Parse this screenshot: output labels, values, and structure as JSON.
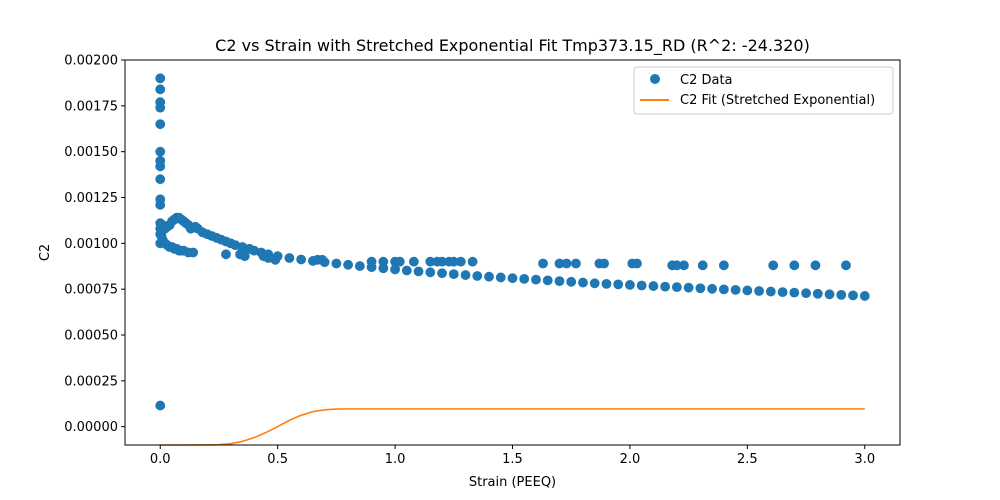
{
  "chart_data": {
    "type": "scatter",
    "title": "C2 vs Strain with Stretched Exponential Fit Tmp373.15_RD (R^2: -24.320)",
    "xlabel": "Strain (PEEQ)",
    "ylabel": "C2",
    "xlim": [
      -0.15,
      3.15
    ],
    "ylim": [
      -0.0001,
      0.002
    ],
    "xticks": [
      0.0,
      0.5,
      1.0,
      1.5,
      2.0,
      2.5,
      3.0
    ],
    "xtick_labels": [
      "0.0",
      "0.5",
      "1.0",
      "1.5",
      "2.0",
      "2.5",
      "3.0"
    ],
    "yticks": [
      0.0,
      0.00025,
      0.0005,
      0.00075,
      0.001,
      0.00125,
      0.0015,
      0.00175,
      0.002
    ],
    "ytick_labels": [
      "0.00000",
      "0.00025",
      "0.00050",
      "0.00075",
      "0.00100",
      "0.00125",
      "0.00150",
      "0.00175",
      "0.00200"
    ],
    "legend_position": "top-right",
    "grid": false,
    "series": [
      {
        "name": "C2 Data",
        "kind": "scatter",
        "color": "#1f77b4",
        "x": [
          0.0,
          0.0,
          0.0,
          0.0,
          0.0,
          0.0,
          0.0,
          0.0,
          0.0,
          0.0,
          0.0,
          0.0,
          0.0,
          0.0,
          0.0,
          0.0,
          0.005,
          0.01,
          0.01,
          0.01,
          0.02,
          0.02,
          0.03,
          0.03,
          0.04,
          0.04,
          0.05,
          0.06,
          0.07,
          0.08,
          0.09,
          0.1,
          0.11,
          0.12,
          0.13,
          0.05,
          0.06,
          0.07,
          0.08,
          0.09,
          0.1,
          0.12,
          0.14,
          0.15,
          0.16,
          0.18,
          0.2,
          0.22,
          0.24,
          0.26,
          0.28,
          0.3,
          0.32,
          0.35,
          0.38,
          0.4,
          0.43,
          0.46,
          0.5,
          0.55,
          0.6,
          0.65,
          0.7,
          0.75,
          0.8,
          0.85,
          0.9,
          0.95,
          1.0,
          1.05,
          1.1,
          1.15,
          1.2,
          1.25,
          1.3,
          1.35,
          1.4,
          1.45,
          1.5,
          1.55,
          1.6,
          1.65,
          1.7,
          1.75,
          1.8,
          1.85,
          1.9,
          1.95,
          2.0,
          2.05,
          2.1,
          2.15,
          2.2,
          2.25,
          2.3,
          2.35,
          2.4,
          2.45,
          2.5,
          2.55,
          2.6,
          2.65,
          2.7,
          2.75,
          2.8,
          2.85,
          2.9,
          2.95,
          3.0,
          0.28,
          0.34,
          0.36,
          0.44,
          0.46,
          0.49,
          0.67,
          0.69,
          0.9,
          0.95,
          1.0,
          1.02,
          1.08,
          1.15,
          1.18,
          1.2,
          1.23,
          1.25,
          1.28,
          1.33,
          1.63,
          1.7,
          1.73,
          1.77,
          1.87,
          1.89,
          2.01,
          2.03,
          2.18,
          2.2,
          2.23,
          2.31,
          2.4,
          2.61,
          2.7,
          2.79,
          2.92
        ],
        "y": [
          0.0019,
          0.00184,
          0.00177,
          0.00174,
          0.00165,
          0.0015,
          0.00145,
          0.00142,
          0.00135,
          0.00124,
          0.00121,
          0.00111,
          0.00108,
          0.00105,
          0.001,
          0.000115,
          0.00104,
          0.0011,
          0.00107,
          0.00102,
          0.00108,
          0.001,
          0.00109,
          0.00099,
          0.0011,
          0.00098,
          0.00112,
          0.00113,
          0.00114,
          0.00114,
          0.00113,
          0.00112,
          0.00111,
          0.0011,
          0.00108,
          0.00098,
          0.00097,
          0.00097,
          0.00096,
          0.00096,
          0.00096,
          0.00095,
          0.00095,
          0.00109,
          0.00108,
          0.00106,
          0.00105,
          0.00104,
          0.00103,
          0.00102,
          0.00101,
          0.001,
          0.00099,
          0.00098,
          0.00097,
          0.00096,
          0.00095,
          0.00094,
          0.00093,
          0.00092,
          0.000912,
          0.000904,
          0.000897,
          0.00089,
          0.000883,
          0.000876,
          0.00087,
          0.000864,
          0.000858,
          0.000852,
          0.000847,
          0.000842,
          0.000837,
          0.000832,
          0.000827,
          0.000822,
          0.000818,
          0.000814,
          0.00081,
          0.000806,
          0.000802,
          0.000798,
          0.000794,
          0.00079,
          0.000786,
          0.000782,
          0.000779,
          0.000776,
          0.000773,
          0.00077,
          0.000767,
          0.000764,
          0.000761,
          0.000758,
          0.000755,
          0.000752,
          0.000749,
          0.000746,
          0.000743,
          0.00074,
          0.000737,
          0.000734,
          0.000731,
          0.000728,
          0.000725,
          0.000722,
          0.000719,
          0.000716,
          0.000713,
          0.00094,
          0.00094,
          0.00093,
          0.00093,
          0.00092,
          0.00091,
          0.00091,
          0.00091,
          0.0009,
          0.0009,
          0.0009,
          0.0009,
          0.0009,
          0.0009,
          0.0009,
          0.0009,
          0.0009,
          0.0009,
          0.0009,
          0.0009,
          0.00089,
          0.00089,
          0.00089,
          0.00089,
          0.00089,
          0.00089,
          0.00089,
          0.00089,
          0.00088,
          0.00088,
          0.00088,
          0.00088,
          0.00088,
          0.00088,
          0.00088,
          0.00088,
          0.00088
        ]
      },
      {
        "name": "C2 Fit (Stretched Exponential)",
        "kind": "line",
        "color": "#ff7f0e",
        "x": [
          0.0,
          0.1,
          0.2,
          0.25,
          0.3,
          0.35,
          0.4,
          0.45,
          0.5,
          0.55,
          0.6,
          0.65,
          0.7,
          0.75,
          0.8,
          0.9,
          1.0,
          1.5,
          2.0,
          2.5,
          3.0
        ],
        "y": [
          -0.0001,
          -0.0001,
          -9.95e-05,
          -9.8e-05,
          -9.3e-05,
          -8e-05,
          -6e-05,
          -3.2e-05,
          0.0,
          3.5e-05,
          6.2e-05,
          8.2e-05,
          9.2e-05,
          9.6e-05,
          9.7e-05,
          9.7e-05,
          9.7e-05,
          9.7e-05,
          9.7e-05,
          9.7e-05,
          9.7e-05
        ]
      }
    ]
  }
}
